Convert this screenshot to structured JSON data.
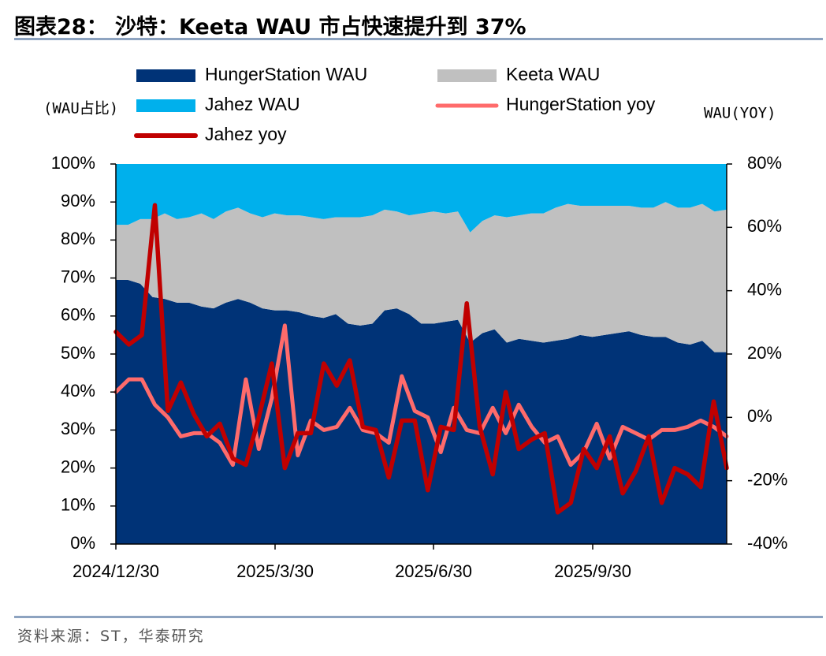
{
  "title": "图表28： 沙特：Keeta WAU 市占快速提升到 37%",
  "source": "资料来源：ST，华泰研究",
  "colors": {
    "hungerstation_area": "#003377",
    "keeta_area": "#c0c0c0",
    "jahez_area": "#00b0ec",
    "hungerstation_yoy": "#ff6b6b",
    "jahez_yoy": "#c00000"
  },
  "chart_data": {
    "type": "area",
    "title": "沙特：Keeta WAU 市占快速提升到 37%",
    "left_axis_label": "(WAU占比)",
    "right_axis_label": "WAU(YOY)",
    "left_ylim": [
      0,
      100
    ],
    "left_ticks": [
      "0%",
      "10%",
      "20%",
      "30%",
      "40%",
      "50%",
      "60%",
      "70%",
      "80%",
      "90%",
      "100%"
    ],
    "right_ylim": [
      -40,
      80
    ],
    "right_ticks": [
      "-40%",
      "-20%",
      "0%",
      "20%",
      "40%",
      "60%",
      "80%"
    ],
    "x_tick_labels": [
      {
        "index": 0,
        "label": "2024/12/30"
      },
      {
        "index": 13,
        "label": "2025/3/30"
      },
      {
        "index": 26,
        "label": "2025/6/30"
      },
      {
        "index": 39,
        "label": "2025/9/30"
      }
    ],
    "legend": [
      {
        "name": "HungerStation WAU",
        "type": "area"
      },
      {
        "name": "Keeta WAU",
        "type": "area"
      },
      {
        "name": "Jahez WAU",
        "type": "area"
      },
      {
        "name": "HungerStation yoy",
        "type": "line"
      },
      {
        "name": "Jahez yoy",
        "type": "line"
      }
    ],
    "series": [
      {
        "name": "HungerStation WAU",
        "axis": "left",
        "stack": true,
        "values": [
          69.5,
          69.5,
          68.5,
          65,
          64.5,
          63.5,
          63.5,
          62.5,
          62,
          63.5,
          64.5,
          63.5,
          62,
          61.5,
          61.5,
          61,
          60,
          59.5,
          60.5,
          58,
          57.5,
          58,
          61.5,
          62,
          60.5,
          58,
          58,
          58.5,
          59,
          53,
          55.5,
          56.5,
          53,
          54,
          53.5,
          53,
          53.5,
          54,
          55,
          54.5,
          55,
          55.5,
          56,
          55,
          54.5,
          54.5,
          53,
          52.5,
          53.5,
          50.5,
          50.5
        ]
      },
      {
        "name": "Keeta WAU",
        "axis": "left",
        "stack": true,
        "values": [
          14.5,
          14.5,
          17,
          20.5,
          22.5,
          22,
          22.5,
          24.5,
          23.5,
          24,
          24,
          23.5,
          24,
          25.5,
          25,
          25.5,
          26,
          26,
          25.5,
          28,
          28.5,
          28.5,
          26.5,
          25.5,
          26,
          29,
          29.5,
          28.5,
          28.5,
          29,
          29.5,
          30,
          33,
          32.5,
          33.5,
          34,
          35,
          35.5,
          34,
          34.5,
          34,
          33.5,
          33,
          33.5,
          34,
          35.5,
          35.5,
          36,
          36,
          37,
          37.5
        ]
      },
      {
        "name": "Jahez WAU",
        "axis": "left",
        "stack": true,
        "values": [
          16,
          16,
          14.5,
          14.5,
          13,
          14.5,
          14,
          13,
          14.5,
          12.5,
          11.5,
          13,
          14,
          13,
          13.5,
          13.5,
          14,
          14.5,
          14,
          14,
          14,
          13.5,
          12,
          12.5,
          13.5,
          13,
          12.5,
          13,
          12.5,
          18,
          15,
          13.5,
          14,
          13.5,
          13,
          13,
          11.5,
          10.5,
          11,
          11,
          11,
          11,
          11,
          11.5,
          11.5,
          10,
          11.5,
          11.5,
          10.5,
          12.5,
          12
        ]
      },
      {
        "name": "HungerStation yoy",
        "axis": "right",
        "values": [
          8,
          12,
          12,
          4,
          0,
          -6,
          -5,
          -5,
          -8,
          -15,
          12,
          -10,
          6,
          29,
          -12,
          -1,
          -4,
          -3,
          3,
          -4,
          -5,
          -8,
          13,
          2,
          0,
          -11,
          3,
          -4,
          -5,
          3,
          -5,
          4,
          -3,
          -8,
          -6,
          -15,
          -11,
          -2,
          -13,
          -3,
          -5,
          -7,
          -4,
          -4,
          -3,
          -1,
          -3,
          -6
        ]
      },
      {
        "name": "Jahez yoy",
        "axis": "right",
        "values": [
          27,
          23,
          26,
          67,
          2,
          11,
          1,
          -6,
          -2,
          -13,
          -15,
          0,
          17,
          -16,
          -5,
          -5,
          17,
          10,
          18,
          -3,
          -4,
          -19,
          -1,
          -1,
          -23,
          -3,
          -4,
          36,
          -3,
          -18,
          8,
          -10,
          -7,
          -5,
          -30,
          -27,
          -10,
          -16,
          -6,
          -24,
          -17,
          -6,
          -27,
          -16,
          -18,
          -22,
          5,
          -16
        ]
      }
    ]
  }
}
